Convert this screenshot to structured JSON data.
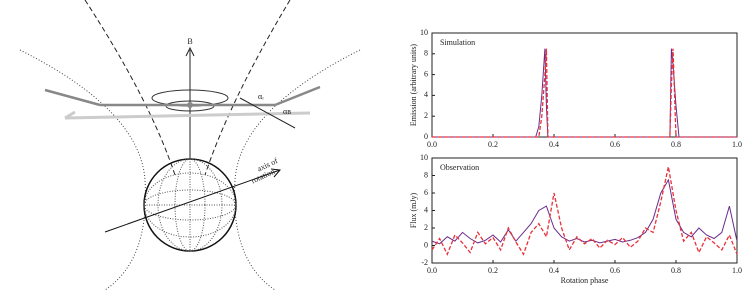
{
  "diagram": {
    "labels": [
      "B",
      "αᵣ",
      "αʙ",
      "axis of",
      "rotation"
    ]
  },
  "chart_data": [
    {
      "type": "line",
      "title": "Simulation",
      "ylabel": "Emission (arbitrary units)",
      "x": [
        0,
        0.34,
        0.35,
        0.36,
        0.37,
        0.375,
        0.38,
        0.39,
        0.78,
        0.785,
        0.79,
        0.8,
        0.81,
        0.82,
        1
      ],
      "series": [
        {
          "color": "#6a2c8c",
          "dash": false,
          "values": [
            0,
            0,
            1,
            4,
            8.5,
            3,
            0,
            0,
            0,
            8.5,
            7,
            3,
            0,
            0,
            0
          ]
        },
        {
          "color": "#e8303a",
          "dash": true,
          "values": [
            0,
            0,
            0,
            2,
            6,
            8.5,
            0,
            0,
            0,
            5,
            8.5,
            0,
            0,
            0,
            0
          ]
        }
      ],
      "xlim": [
        0,
        1
      ],
      "ylim": [
        0,
        10
      ],
      "xticks": [
        {
          "value": 0,
          "label": "0.0"
        },
        0.2,
        0.4,
        0.6,
        0.8,
        {
          "value": 1,
          "label": "1.0"
        }
      ],
      "yticks": [
        0,
        2,
        4,
        6,
        8,
        10
      ]
    },
    {
      "type": "line",
      "title": "Observation",
      "ylabel": "Flux (mJy)",
      "xlabel": "Rotation phase",
      "x": [
        0,
        0.025,
        0.05,
        0.075,
        0.1,
        0.125,
        0.15,
        0.175,
        0.2,
        0.225,
        0.25,
        0.275,
        0.3,
        0.325,
        0.35,
        0.375,
        0.4,
        0.425,
        0.45,
        0.475,
        0.5,
        0.525,
        0.55,
        0.575,
        0.6,
        0.625,
        0.65,
        0.675,
        0.7,
        0.725,
        0.75,
        0.775,
        0.8,
        0.825,
        0.85,
        0.875,
        0.9,
        0.925,
        0.95,
        0.975,
        1
      ],
      "series": [
        {
          "color": "#6a2c8c",
          "dash": false,
          "values": [
            0.5,
            0.2,
            1,
            0.5,
            1.5,
            0.8,
            0.3,
            0.6,
            1.2,
            0.4,
            1.8,
            0.5,
            1.5,
            2.5,
            4,
            4.5,
            2,
            1,
            0.5,
            0.8,
            0.4,
            0.6,
            0.3,
            0.5,
            0.7,
            0.4,
            0.6,
            0.9,
            1.5,
            3,
            6,
            7.5,
            3,
            1.5,
            1,
            2,
            1.2,
            0.8,
            1.5,
            4.5,
            0.5
          ]
        },
        {
          "color": "#e8303a",
          "dash": true,
          "values": [
            -0.5,
            0.8,
            -1,
            1.2,
            0.3,
            -0.8,
            1.5,
            0.2,
            0.9,
            -0.5,
            2,
            0.4,
            -1,
            1.5,
            2.5,
            1,
            6,
            2,
            -0.5,
            1,
            0.2,
            0.8,
            -0.3,
            0.6,
            0.1,
            0.9,
            -0.2,
            0.5,
            2,
            1.5,
            5,
            9,
            4,
            0.5,
            1.5,
            -0.8,
            1,
            0.3,
            -0.5,
            1.2,
            -1
          ]
        }
      ],
      "xlim": [
        0,
        1
      ],
      "ylim": [
        -2,
        10
      ],
      "xticks": [
        {
          "value": 0,
          "label": "0.0"
        },
        0.2,
        0.4,
        0.6,
        0.8,
        {
          "value": 1,
          "label": "1.0"
        }
      ],
      "yticks": [
        -2,
        0,
        2,
        4,
        6,
        8,
        10
      ]
    }
  ]
}
